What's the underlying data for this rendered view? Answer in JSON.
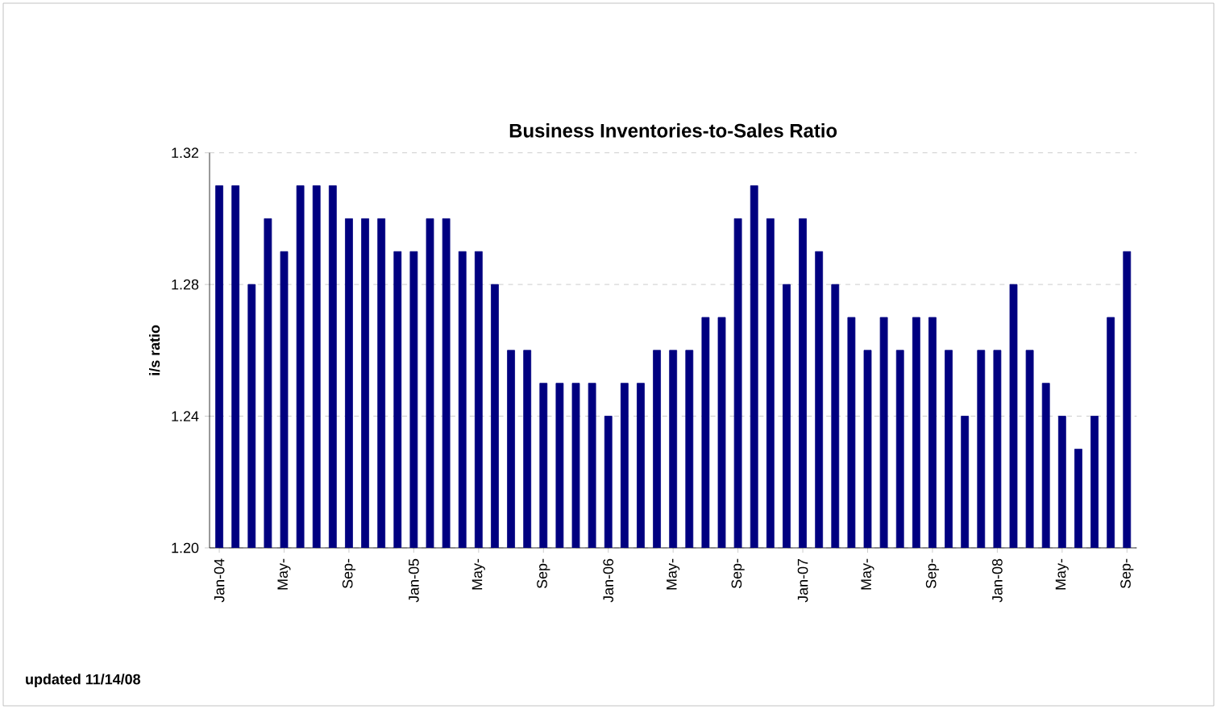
{
  "chart_data": {
    "type": "bar",
    "title": "Business Inventories-to-Sales Ratio",
    "ylabel": "i/s ratio",
    "categories": [
      "Jan-04",
      null,
      null,
      null,
      "May-",
      null,
      null,
      null,
      "Sep-",
      null,
      null,
      null,
      "Jan-05",
      null,
      null,
      null,
      "May-",
      null,
      null,
      null,
      "Sep-",
      null,
      null,
      null,
      "Jan-06",
      null,
      null,
      null,
      "May-",
      null,
      null,
      null,
      "Sep-",
      null,
      null,
      null,
      "Jan-07",
      null,
      null,
      null,
      "May-",
      null,
      null,
      null,
      "Sep-",
      null,
      null,
      null,
      "Jan-08",
      null,
      null,
      null,
      "May-",
      null,
      null,
      null,
      "Sep-"
    ],
    "values": [
      1.31,
      1.31,
      1.28,
      1.3,
      1.29,
      1.31,
      1.31,
      1.31,
      1.3,
      1.3,
      1.3,
      1.29,
      1.29,
      1.3,
      1.3,
      1.29,
      1.29,
      1.28,
      1.26,
      1.26,
      1.25,
      1.25,
      1.25,
      1.25,
      1.24,
      1.25,
      1.25,
      1.26,
      1.26,
      1.26,
      1.27,
      1.27,
      1.3,
      1.31,
      1.3,
      1.28,
      1.3,
      1.29,
      1.28,
      1.27,
      1.26,
      1.27,
      1.26,
      1.27,
      1.27,
      1.26,
      1.24,
      1.26,
      1.26,
      1.28,
      1.26,
      1.25,
      1.24,
      1.23,
      1.24,
      1.27,
      1.29
    ],
    "color": "#000080",
    "ylim": [
      1.2,
      1.32
    ],
    "yticks": [
      {
        "value": 1.2,
        "label": "1.20"
      },
      {
        "value": 1.24,
        "label": "1.24"
      },
      {
        "value": 1.28,
        "label": "1.28"
      },
      {
        "value": 1.32,
        "label": "1.32"
      }
    ],
    "grid": "y",
    "annotations": [
      "updated 11/14/08"
    ]
  }
}
